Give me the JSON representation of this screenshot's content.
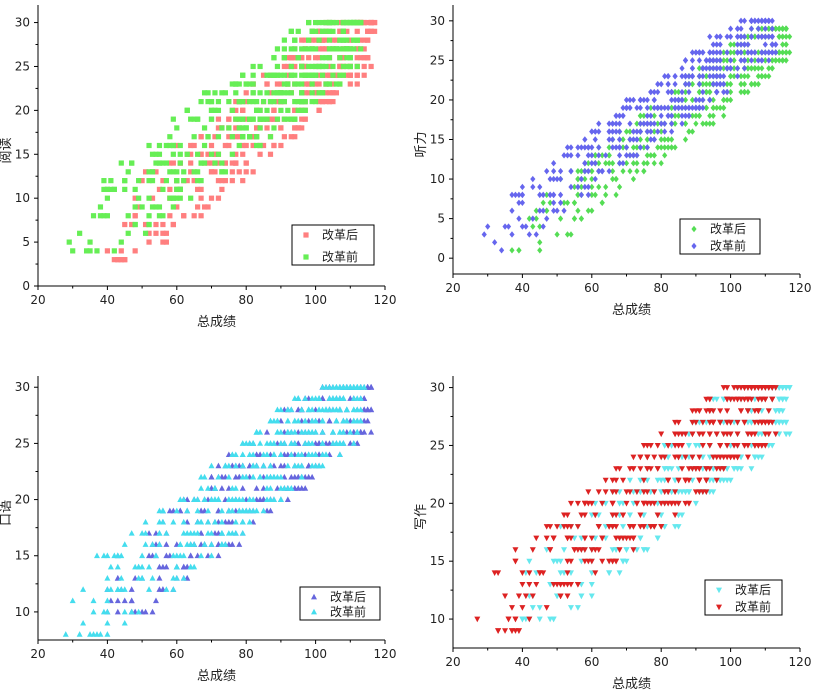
{
  "chart_data": [
    {
      "type": "scatter",
      "marker": "square",
      "xlabel": "总成绩",
      "ylabel": "阅读",
      "xlim": [
        20,
        120
      ],
      "ylim": [
        0,
        32
      ],
      "xticks": [
        20,
        40,
        60,
        80,
        100,
        120
      ],
      "yticks": [
        0,
        5,
        10,
        15,
        20,
        25,
        30
      ],
      "legend_position": "bottom-right",
      "series": [
        {
          "name": "改革后",
          "color": "#ff7f7f",
          "x_range": [
            37,
            117
          ],
          "y_range": [
            3,
            30
          ],
          "slope": 0.31,
          "spread": 5
        },
        {
          "name": "改革前",
          "color": "#66ee55",
          "x_range": [
            26,
            113
          ],
          "y_range": [
            4,
            30
          ],
          "slope": 0.3,
          "spread": 5
        }
      ]
    },
    {
      "type": "scatter",
      "marker": "diamond",
      "xlabel": "总成绩",
      "ylabel": "听力",
      "xlim": [
        20,
        120
      ],
      "ylim": [
        -2,
        32
      ],
      "xticks": [
        20,
        40,
        60,
        80,
        100,
        120
      ],
      "yticks": [
        0,
        5,
        10,
        15,
        20,
        25,
        30
      ],
      "legend_position": "bottom-right",
      "series": [
        {
          "name": "改革后",
          "color": "#55dd55",
          "x_range": [
            36,
            117
          ],
          "y_range": [
            1,
            29
          ],
          "slope": 0.32,
          "spread": 4
        },
        {
          "name": "改革前",
          "color": "#6666ee",
          "x_range": [
            26,
            113
          ],
          "y_range": [
            1,
            30
          ],
          "slope": 0.33,
          "spread": 4
        }
      ]
    },
    {
      "type": "scatter",
      "marker": "triangle-up",
      "xlabel": "总成绩",
      "ylabel": "口语",
      "xlim": [
        20,
        120
      ],
      "ylim": [
        7.5,
        31
      ],
      "xticks": [
        20,
        40,
        60,
        80,
        100,
        120
      ],
      "yticks": [
        10,
        15,
        20,
        25,
        30
      ],
      "legend_position": "bottom-right",
      "series": [
        {
          "name": "改革后",
          "color": "#6666dd",
          "x_range": [
            37,
            116
          ],
          "y_range": [
            10,
            30
          ],
          "slope": 0.14,
          "spread": 4
        },
        {
          "name": "改革前",
          "color": "#44ddee",
          "x_range": [
            26,
            114
          ],
          "y_range": [
            8,
            30
          ],
          "slope": 0.14,
          "spread": 4
        }
      ]
    },
    {
      "type": "scatter",
      "marker": "triangle-down",
      "xlabel": "总成绩",
      "ylabel": "写作",
      "xlim": [
        20,
        120
      ],
      "ylim": [
        7.5,
        31
      ],
      "xticks": [
        20,
        40,
        60,
        80,
        100,
        120
      ],
      "yticks": [
        10,
        15,
        20,
        25,
        30
      ],
      "legend_position": "bottom-right",
      "series": [
        {
          "name": "改革后",
          "color": "#66e8ee",
          "x_range": [
            36,
            117
          ],
          "y_range": [
            10,
            30
          ],
          "slope": 0.22,
          "spread": 4
        },
        {
          "name": "改革前",
          "color": "#dd2222",
          "x_range": [
            26,
            113
          ],
          "y_range": [
            9,
            30
          ],
          "slope": 0.23,
          "spread": 4
        }
      ]
    }
  ]
}
